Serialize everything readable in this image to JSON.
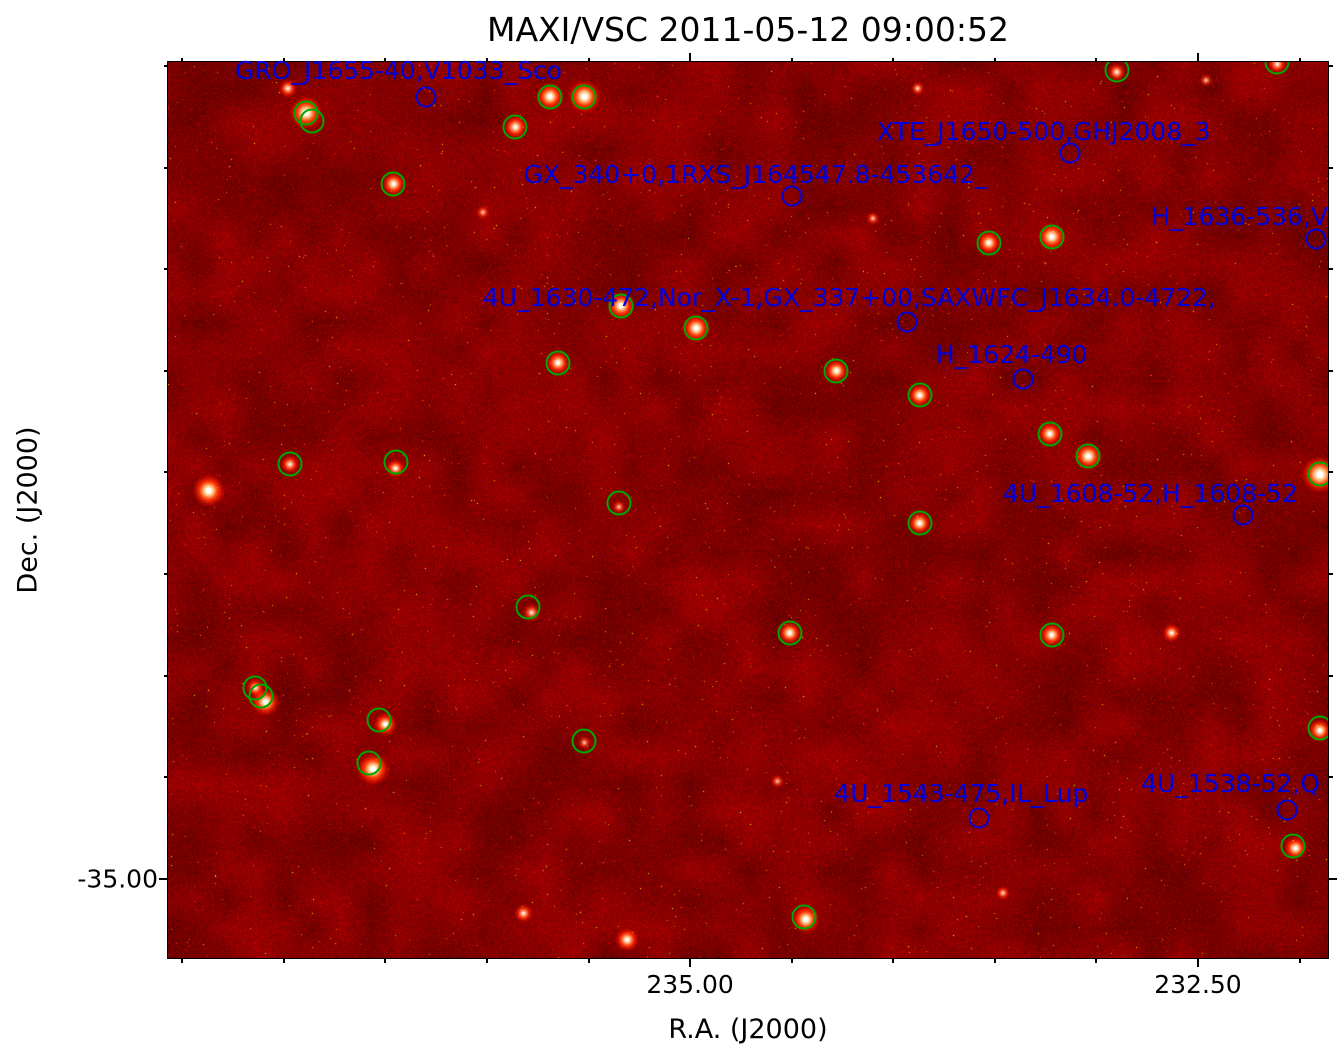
{
  "chart_data": {
    "type": "heatmap",
    "title": "MAXI/VSC 2011-05-12 09:00:52",
    "xlabel": "R.A. (J2000)",
    "ylabel": "Dec. (J2000)",
    "x_range": [
      237.57,
      231.86
    ],
    "y_range": [
      -30.98,
      -35.39
    ],
    "x_ticks": [
      {
        "label": "235.00",
        "ra": 235.0
      },
      {
        "label": "232.50",
        "ra": 232.5
      }
    ],
    "y_ticks": [
      {
        "label": "-35.00",
        "dec": -35.0
      }
    ],
    "minor_tick_step_deg": 0.5,
    "colormap": "hot",
    "colors": {
      "field_base": "#8c0e06",
      "detected_circle": "#00a800",
      "catalog": "#0000dd",
      "title": "#000000"
    },
    "detected_sources": [
      {
        "ra": 236.89,
        "dec": -31.23
      },
      {
        "ra": 236.86,
        "dec": -31.27
      },
      {
        "ra": 235.69,
        "dec": -31.15
      },
      {
        "ra": 235.52,
        "dec": -31.15
      },
      {
        "ra": 235.86,
        "dec": -31.3
      },
      {
        "ra": 236.46,
        "dec": -31.58
      },
      {
        "ra": 233.53,
        "dec": -31.87
      },
      {
        "ra": 233.22,
        "dec": -31.84
      },
      {
        "ra": 235.34,
        "dec": -32.18
      },
      {
        "ra": 234.97,
        "dec": -32.29
      },
      {
        "ra": 235.65,
        "dec": -32.46
      },
      {
        "ra": 234.28,
        "dec": -32.5
      },
      {
        "ra": 233.87,
        "dec": -32.62
      },
      {
        "ra": 233.23,
        "dec": -32.81
      },
      {
        "ra": 233.04,
        "dec": -32.92
      },
      {
        "ra": 236.97,
        "dec": -32.96
      },
      {
        "ra": 236.45,
        "dec": -32.95
      },
      {
        "ra": 235.35,
        "dec": -33.15
      },
      {
        "ra": 233.87,
        "dec": -33.25
      },
      {
        "ra": 231.9,
        "dec": -33.01
      },
      {
        "ra": 235.8,
        "dec": -33.66
      },
      {
        "ra": 234.51,
        "dec": -33.79
      },
      {
        "ra": 233.22,
        "dec": -33.8
      },
      {
        "ra": 237.14,
        "dec": -34.06
      },
      {
        "ra": 237.11,
        "dec": -34.1
      },
      {
        "ra": 236.53,
        "dec": -34.22
      },
      {
        "ra": 236.58,
        "dec": -34.43
      },
      {
        "ra": 235.52,
        "dec": -34.32
      },
      {
        "ra": 231.9,
        "dec": -34.26
      },
      {
        "ra": 232.03,
        "dec": -34.84
      },
      {
        "ra": 234.44,
        "dec": -35.19
      },
      {
        "ra": 232.9,
        "dec": -31.02
      },
      {
        "ra": 232.11,
        "dec": -30.98
      }
    ],
    "catalog_sources": [
      {
        "label": "GRO_J1655-40,V1033_Sco",
        "ra": 236.3,
        "dec": -31.15,
        "label_ra": 237.24,
        "label_dec": -30.96
      },
      {
        "label": "XTE_J1650-500,GHJ2008_3",
        "ra": 233.13,
        "dec": -31.43,
        "label_ra": 234.08,
        "label_dec": -31.26
      },
      {
        "label": "GX_340+0,1RXS_J164547.8-453642_",
        "ra": 234.5,
        "dec": -31.64,
        "label_ra": 235.82,
        "label_dec": -31.47
      },
      {
        "label": "H_1636-536,V",
        "ra": 231.92,
        "dec": -31.85,
        "label_ra": 232.73,
        "label_dec": -31.68
      },
      {
        "label": "4U_1630-472,Nor_X-1,GX_337+00,SAXWFC_J1634.0-4722,",
        "ra": 233.93,
        "dec": -32.26,
        "label_ra": 236.02,
        "label_dec": -32.08
      },
      {
        "label": "H_1624-490",
        "ra": 233.36,
        "dec": -32.54,
        "label_ra": 233.79,
        "label_dec": -32.36
      },
      {
        "label": "4U_1608-52,H_1608-52",
        "ra": 232.28,
        "dec": -33.21,
        "label_ra": 233.46,
        "label_dec": -33.04
      },
      {
        "label": "4U_1543-475,IL_Lup",
        "ra": 233.58,
        "dec": -34.7,
        "label_ra": 234.29,
        "label_dec": -34.52
      },
      {
        "label": "4U_1538-52,Q",
        "ra": 232.06,
        "dec": -34.66,
        "label_ra": 232.78,
        "label_dec": -34.47
      }
    ],
    "bright_spots": [
      {
        "ra": 236.89,
        "dec": -31.23,
        "r": 7,
        "b": 1.0
      },
      {
        "ra": 235.69,
        "dec": -31.15,
        "r": 6,
        "b": 0.95
      },
      {
        "ra": 235.52,
        "dec": -31.15,
        "r": 7,
        "b": 1.0
      },
      {
        "ra": 235.86,
        "dec": -31.3,
        "r": 5,
        "b": 0.85
      },
      {
        "ra": 236.46,
        "dec": -31.58,
        "r": 5,
        "b": 0.9
      },
      {
        "ra": 233.53,
        "dec": -31.87,
        "r": 5,
        "b": 0.9
      },
      {
        "ra": 233.22,
        "dec": -31.84,
        "r": 6,
        "b": 0.95
      },
      {
        "ra": 235.34,
        "dec": -32.18,
        "r": 6,
        "b": 0.95
      },
      {
        "ra": 234.97,
        "dec": -32.29,
        "r": 6,
        "b": 0.95
      },
      {
        "ra": 235.65,
        "dec": -32.46,
        "r": 5,
        "b": 0.9
      },
      {
        "ra": 234.28,
        "dec": -32.5,
        "r": 5,
        "b": 0.95
      },
      {
        "ra": 233.87,
        "dec": -32.62,
        "r": 5,
        "b": 0.9
      },
      {
        "ra": 233.23,
        "dec": -32.81,
        "r": 5,
        "b": 0.9
      },
      {
        "ra": 233.04,
        "dec": -32.92,
        "r": 6,
        "b": 0.95
      },
      {
        "ra": 236.97,
        "dec": -32.96,
        "r": 4,
        "b": 0.7
      },
      {
        "ra": 236.45,
        "dec": -32.98,
        "r": 4,
        "b": 0.8
      },
      {
        "ra": 235.35,
        "dec": -33.17,
        "r": 3,
        "b": 0.5
      },
      {
        "ra": 233.87,
        "dec": -33.25,
        "r": 5,
        "b": 0.9
      },
      {
        "ra": 231.9,
        "dec": -33.01,
        "r": 8,
        "b": 1.0
      },
      {
        "ra": 235.78,
        "dec": -33.69,
        "r": 4,
        "b": 0.6
      },
      {
        "ra": 234.51,
        "dec": -33.79,
        "r": 5,
        "b": 0.9
      },
      {
        "ra": 233.22,
        "dec": -33.8,
        "r": 5,
        "b": 0.9
      },
      {
        "ra": 237.14,
        "dec": -34.06,
        "r": 4,
        "b": 0.7
      },
      {
        "ra": 237.09,
        "dec": -34.13,
        "r": 6,
        "b": 0.95
      },
      {
        "ra": 236.5,
        "dec": -34.24,
        "r": 5,
        "b": 0.9
      },
      {
        "ra": 236.56,
        "dec": -34.46,
        "r": 7,
        "b": 1.0
      },
      {
        "ra": 235.52,
        "dec": -34.33,
        "r": 3,
        "b": 0.5
      },
      {
        "ra": 231.9,
        "dec": -34.27,
        "r": 5,
        "b": 0.9
      },
      {
        "ra": 232.02,
        "dec": -34.85,
        "r": 5,
        "b": 0.9
      },
      {
        "ra": 234.43,
        "dec": -35.2,
        "r": 6,
        "b": 1.0
      },
      {
        "ra": 232.9,
        "dec": -31.03,
        "r": 4,
        "b": 0.7
      },
      {
        "ra": 232.11,
        "dec": -30.99,
        "r": 4,
        "b": 0.7
      },
      {
        "ra": 237.37,
        "dec": -33.09,
        "r": 7,
        "b": 1.0
      },
      {
        "ra": 235.31,
        "dec": -35.3,
        "r": 5,
        "b": 0.9
      },
      {
        "ra": 233.46,
        "dec": -35.07,
        "r": 3,
        "b": 0.6
      },
      {
        "ra": 234.57,
        "dec": -34.52,
        "r": 3,
        "b": 0.5
      },
      {
        "ra": 235.82,
        "dec": -35.17,
        "r": 4,
        "b": 0.7
      },
      {
        "ra": 232.63,
        "dec": -33.79,
        "r": 4,
        "b": 0.8
      },
      {
        "ra": 233.88,
        "dec": -31.11,
        "r": 3,
        "b": 0.6
      },
      {
        "ra": 232.46,
        "dec": -31.07,
        "r": 3,
        "b": 0.5
      },
      {
        "ra": 236.02,
        "dec": -31.72,
        "r": 3,
        "b": 0.5
      },
      {
        "ra": 234.1,
        "dec": -31.75,
        "r": 3,
        "b": 0.5
      },
      {
        "ra": 236.98,
        "dec": -31.11,
        "r": 4,
        "b": 0.7
      }
    ]
  }
}
